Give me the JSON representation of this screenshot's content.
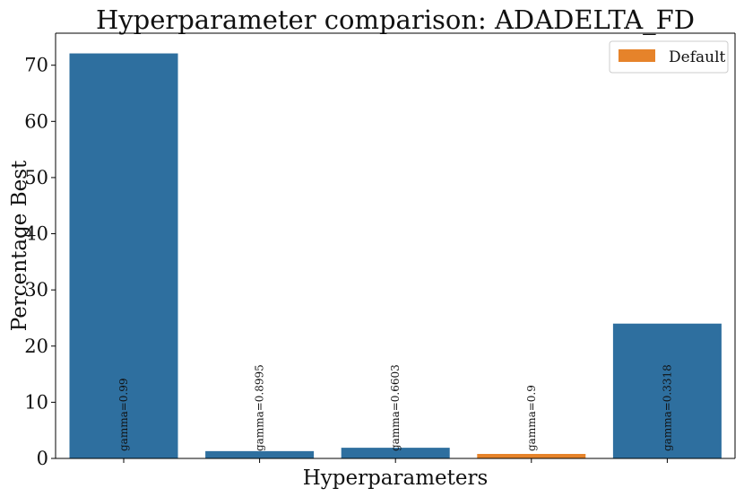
{
  "chart_data": {
    "type": "bar",
    "title": "Hyperparameter comparison: ADADELTA_FD",
    "xlabel": "Hyperparameters",
    "ylabel": "Percentage Best",
    "categories": [
      "gamma=0.99",
      "gamma=0.8995",
      "gamma=0.6603",
      "gamma=0.9",
      "gamma=0.3318"
    ],
    "values": [
      72.1,
      1.3,
      1.9,
      0.8,
      24.0
    ],
    "is_default": [
      false,
      false,
      false,
      true,
      false
    ],
    "ylim": [
      0,
      75.7
    ],
    "yticks": [
      0,
      10,
      20,
      30,
      40,
      50,
      60,
      70
    ],
    "grid": false,
    "legend": {
      "position": "top-right",
      "entries": [
        {
          "label": "Default",
          "color": "#e6832a"
        }
      ]
    },
    "colors": {
      "regular": "#2e6f9f",
      "default": "#e6832a"
    }
  }
}
